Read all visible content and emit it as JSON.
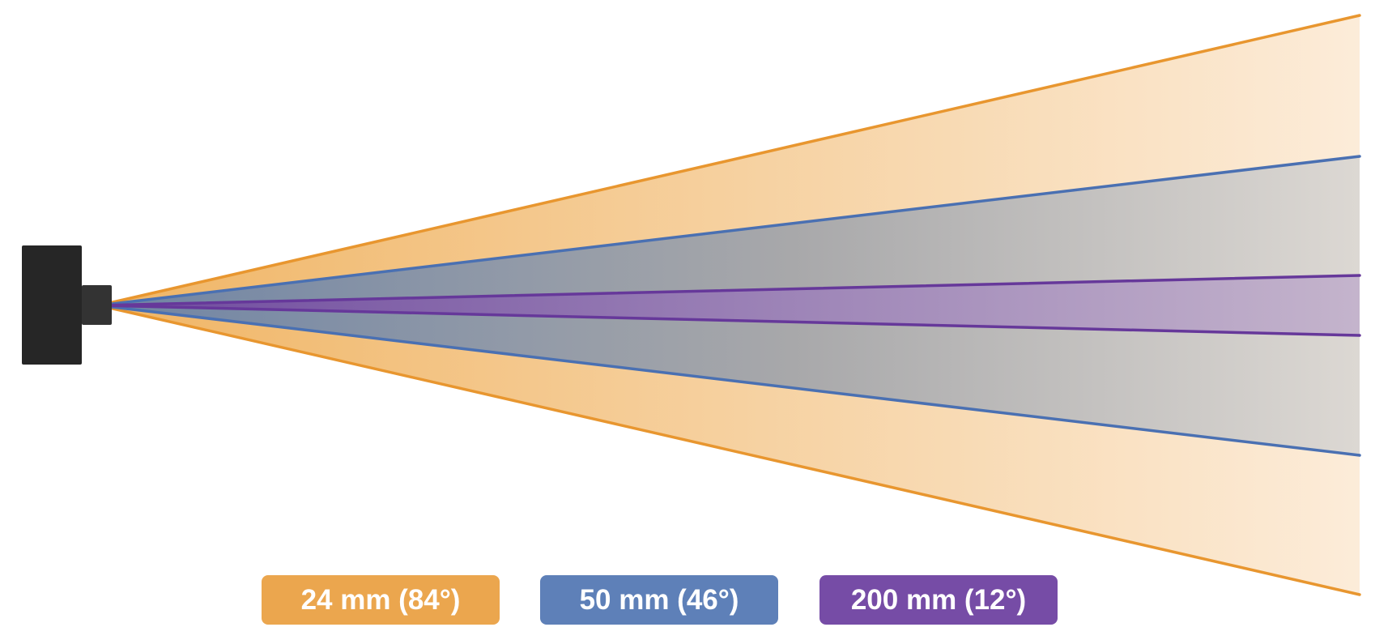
{
  "legend": {
    "items": [
      {
        "label": "24 mm (84°)"
      },
      {
        "label": "50 mm (46°)"
      },
      {
        "label": "200 mm (12°)"
      }
    ]
  }
}
